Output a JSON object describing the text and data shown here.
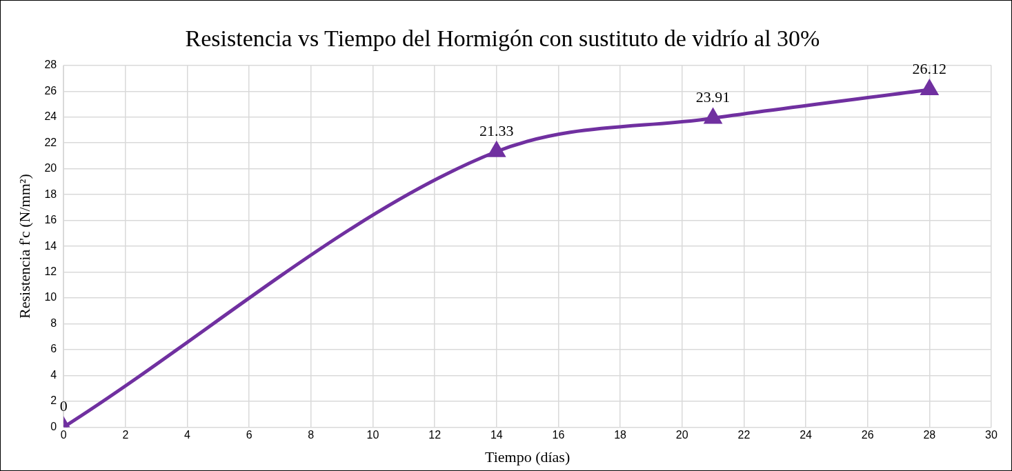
{
  "chart_data": {
    "type": "line",
    "title": "Resistencia vs Tiempo del Hormigón con sustituto de vidrío al 30%",
    "xlabel": "Tiempo (días)",
    "ylabel": "Resistencia f'c (N/mm²)",
    "x": [
      0,
      14,
      21,
      28
    ],
    "series": [
      {
        "color": "#7030a0",
        "values": [
          0,
          21.33,
          23.91,
          26.12
        ]
      }
    ],
    "xlim": [
      0,
      30
    ],
    "xticks": [
      0,
      2,
      4,
      6,
      8,
      10,
      12,
      14,
      16,
      18,
      20,
      22,
      24,
      26,
      28,
      30
    ],
    "ylim": [
      0,
      28
    ],
    "yticks": [
      0,
      2,
      4,
      6,
      8,
      10,
      12,
      14,
      16,
      18,
      20,
      22,
      24,
      26,
      28
    ],
    "grid": true,
    "legend": false,
    "marker": "triangle",
    "line_style": "solid",
    "data_labels": true
  }
}
